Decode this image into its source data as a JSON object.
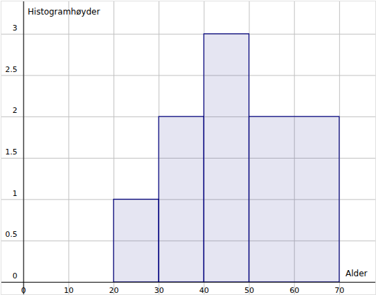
{
  "chart_data": {
    "type": "histogram",
    "x_label": "Alder",
    "y_label": "Histogramhøyder",
    "bins": [
      20,
      30,
      40,
      50,
      70
    ],
    "counts": [
      1,
      2,
      3,
      2
    ],
    "color": "#00007f",
    "xlim": [
      -5,
      78
    ],
    "ylim": [
      -0.15,
      3.4
    ],
    "xticks": [
      0,
      10,
      20,
      30,
      40,
      50,
      60,
      70
    ],
    "yticks": [
      0,
      0.5,
      1,
      1.5,
      2,
      2.5,
      3
    ],
    "grid": true
  }
}
